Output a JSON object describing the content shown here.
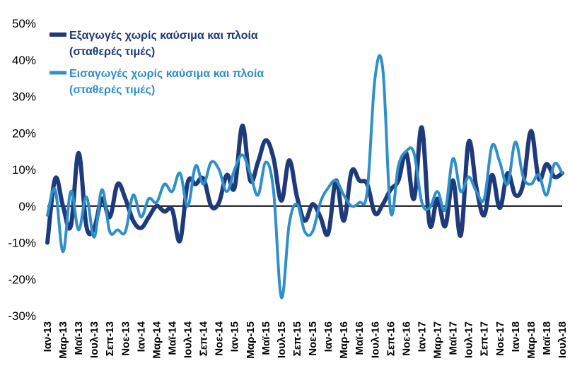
{
  "chart_data": {
    "type": "line",
    "title": "",
    "xlabel": "",
    "ylabel": "",
    "ylim": [
      -30,
      50
    ],
    "yticks": [
      -30,
      -20,
      -10,
      0,
      10,
      20,
      30,
      40,
      50
    ],
    "ytick_labels": [
      "-30%",
      "-20%",
      "-10%",
      "0%",
      "10%",
      "20%",
      "30%",
      "40%",
      "50%"
    ],
    "grid": false,
    "legend_position": "top-left",
    "categories": [
      "Ιαν-13",
      "Φεβ-13",
      "Μαρ-13",
      "Απρ-13",
      "Μαϊ-13",
      "Ιουν-13",
      "Ιουλ-13",
      "Αυγ-13",
      "Σεπ-13",
      "Οκτ-13",
      "Νοε-13",
      "Δεκ-13",
      "Ιαν-14",
      "Φεβ-14",
      "Μαρ-14",
      "Απρ-14",
      "Μαϊ-14",
      "Ιουν-14",
      "Ιουλ-14",
      "Αυγ-14",
      "Σεπ-14",
      "Οκτ-14",
      "Νοε-14",
      "Δεκ-14",
      "Ιαν-15",
      "Φεβ-15",
      "Μαρ-15",
      "Απρ-15",
      "Μαϊ-15",
      "Ιουν-15",
      "Ιουλ-15",
      "Αυγ-15",
      "Σεπ-15",
      "Οκτ-15",
      "Νοε-15",
      "Δεκ-15",
      "Ιαν-16",
      "Φεβ-16",
      "Μαρ-16",
      "Απρ-16",
      "Μαϊ-16",
      "Ιουν-16",
      "Ιουλ-16",
      "Αυγ-16",
      "Σεπ-16",
      "Οκτ-16",
      "Νοε-16",
      "Δεκ-16",
      "Ιαν-17",
      "Φεβ-17",
      "Μαρ-17",
      "Απρ-17",
      "Μαϊ-17",
      "Ιουν-17",
      "Ιουλ-17",
      "Αυγ-17",
      "Σεπ-17",
      "Οκτ-17",
      "Νοε-17",
      "Δεκ-17",
      "Ιαν-18",
      "Φεβ-18",
      "Μαρ-18",
      "Απρ-18",
      "Μαϊ-18",
      "Ιουν-18",
      "Ιουλ-18"
    ],
    "tick_labels": [
      "Ιαν-13",
      "Μαρ-13",
      "Μαϊ-13",
      "Ιουλ-13",
      "Σεπ-13",
      "Νοε-13",
      "Ιαν-14",
      "Μαρ-14",
      "Μαϊ-14",
      "Ιουλ-14",
      "Σεπ-14",
      "Νοε-14",
      "Ιαν-15",
      "Μαρ-15",
      "Μαϊ-15",
      "Ιουλ-15",
      "Σεπ-15",
      "Νοε-15",
      "Ιαν-16",
      "Μαρ-16",
      "Μαϊ-16",
      "Ιουλ-16",
      "Σεπ-16",
      "Νοε-16",
      "Ιαν-17",
      "Μαρ-17",
      "Μαϊ-17",
      "Ιουλ-17",
      "Σεπ-17",
      "Νοε-17",
      "Ιαν-18",
      "Μαρ-18",
      "Μαϊ-18",
      "Ιουλ-18"
    ],
    "series": [
      {
        "name_line1": "Εξαγωγές χωρίς καύσιμα και πλοία",
        "name_line2": "(σταθερές τιμές)",
        "color": "#1f3a7a",
        "values": [
          -10,
          7.5,
          0,
          -5.5,
          14.5,
          -5.5,
          -6,
          2,
          -3,
          6,
          2,
          -4,
          -6,
          -3,
          0,
          -1.5,
          -1,
          -9.5,
          6.5,
          6,
          7.5,
          0,
          1,
          8.5,
          5,
          22,
          7,
          12,
          18,
          13,
          1.5,
          12.5,
          2.5,
          -4,
          0.5,
          -3,
          -7.5,
          7,
          -4,
          9.5,
          7,
          6,
          -2,
          0.5,
          4.5,
          7,
          14.5,
          2,
          21.5,
          -5,
          2,
          -5.5,
          7,
          -8,
          17.5,
          5,
          -2.5,
          8.5,
          -0.5,
          9,
          3,
          6,
          20.5,
          7.5,
          11.5,
          8,
          9
        ]
      },
      {
        "name_line1": "Εισαγωγές χωρίς καύσιμα και πλοία",
        "name_line2": "(σταθερές τιμές)",
        "color": "#2f8fc8",
        "values": [
          -2.5,
          4.5,
          -12.5,
          4,
          -6.5,
          2.5,
          -8.5,
          4.5,
          -7,
          -6.5,
          -7,
          3,
          -3,
          2,
          1,
          6,
          4,
          9,
          0,
          11,
          6,
          12,
          10,
          4,
          10,
          14,
          9,
          3,
          12,
          4,
          -25,
          -5,
          0.5,
          -7,
          -7,
          1,
          5,
          7,
          3,
          0,
          1,
          4,
          35,
          37.5,
          -1.5,
          11,
          15,
          14.5,
          1,
          -0.5,
          4,
          -1,
          13,
          4,
          8,
          4,
          2,
          16.5,
          12,
          6,
          17.5,
          8,
          6,
          8.5,
          3,
          11.5,
          9
        ]
      }
    ]
  }
}
